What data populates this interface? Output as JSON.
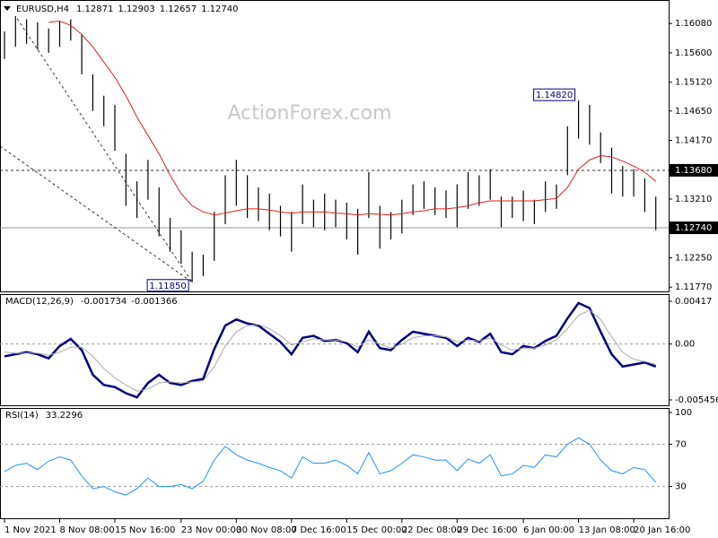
{
  "chart_data": [
    {
      "type": "hilo",
      "title": "EURUSD,H4",
      "readout": [
        "1.12871",
        "1.12903",
        "1.12657",
        "1.12740"
      ],
      "watermark": "ActionForex.com",
      "color": "#000000",
      "high": [
        1.1595,
        1.162,
        1.1615,
        1.161,
        1.16,
        1.1612,
        1.1615,
        1.159,
        1.1525,
        1.149,
        1.1475,
        1.1395,
        1.135,
        1.1385,
        1.134,
        1.129,
        1.127,
        1.1235,
        1.123,
        1.13,
        1.136,
        1.1385,
        1.136,
        1.134,
        1.133,
        1.131,
        1.13,
        1.1345,
        1.132,
        1.133,
        1.132,
        1.1315,
        1.1305,
        1.1365,
        1.131,
        1.13,
        1.132,
        1.1345,
        1.135,
        1.134,
        1.1335,
        1.1345,
        1.1365,
        1.136,
        1.137,
        1.1325,
        1.1325,
        1.1335,
        1.132,
        1.135,
        1.1345,
        1.144,
        1.1482,
        1.1475,
        1.143,
        1.1405,
        1.1375,
        1.137,
        1.1355,
        1.1325
      ],
      "low": [
        1.155,
        1.157,
        1.1575,
        1.1565,
        1.156,
        1.157,
        1.158,
        1.1525,
        1.1465,
        1.144,
        1.14,
        1.131,
        1.129,
        1.132,
        1.126,
        1.1235,
        1.1215,
        1.1185,
        1.1195,
        1.122,
        1.128,
        1.131,
        1.129,
        1.1285,
        1.127,
        1.126,
        1.1235,
        1.128,
        1.1275,
        1.127,
        1.1275,
        1.1255,
        1.123,
        1.129,
        1.124,
        1.1255,
        1.1265,
        1.1295,
        1.1305,
        1.1295,
        1.129,
        1.1275,
        1.1305,
        1.131,
        1.132,
        1.1275,
        1.129,
        1.1285,
        1.128,
        1.13,
        1.1305,
        1.136,
        1.142,
        1.141,
        1.138,
        1.133,
        1.1325,
        1.1325,
        1.13,
        1.127
      ],
      "ma": {
        "color": "#e0201b",
        "values": [
          null,
          null,
          null,
          null,
          1.161,
          1.1612,
          1.1605,
          1.159,
          1.157,
          1.1545,
          1.152,
          1.149,
          1.1455,
          1.1425,
          1.1395,
          1.136,
          1.133,
          1.131,
          1.13,
          1.1295,
          1.1298,
          1.1302,
          1.1305,
          1.1305,
          1.1303,
          1.13,
          1.1298,
          1.13,
          1.13,
          1.13,
          1.1298,
          1.1297,
          1.1295,
          1.1297,
          1.1296,
          1.1295,
          1.1297,
          1.13,
          1.1302,
          1.1305,
          1.1305,
          1.1307,
          1.131,
          1.1315,
          1.1318,
          1.1318,
          1.1318,
          1.1318,
          1.1318,
          1.132,
          1.1322,
          1.134,
          1.137,
          1.1385,
          1.1392,
          1.139,
          1.1383,
          1.1375,
          1.1365,
          1.135
        ]
      },
      "ylim": [
        1.117,
        1.1645
      ],
      "yticks": [
        {
          "value": 1.1608,
          "label": "1.16080"
        },
        {
          "value": 1.156,
          "label": "1.15600"
        },
        {
          "value": 1.1512,
          "label": "1.15120"
        },
        {
          "value": 1.1465,
          "label": "1.14650"
        },
        {
          "value": 1.1417,
          "label": "1.14170"
        },
        {
          "value": 1.1321,
          "label": "1.13210"
        },
        {
          "value": 1.1225,
          "label": "1.12250"
        },
        {
          "value": 1.1177,
          "label": "1.11770"
        }
      ],
      "levels": [
        {
          "value": 1.1368,
          "label": "1.13680",
          "style": "dotted"
        },
        {
          "value": 1.1274,
          "label": "1.12740",
          "style": "solid"
        }
      ],
      "annotations": [
        {
          "value": 1.1482,
          "label": "1.14820"
        },
        {
          "value": 1.1185,
          "label": "1.11850"
        }
      ]
    },
    {
      "type": "macd",
      "title": "MACD(12,26,9)",
      "readout": [
        -0.001734,
        -0.001366
      ],
      "series": [
        {
          "color": "#000080",
          "values": [
            -0.0012,
            -0.001,
            -0.0008,
            -0.001,
            -0.0014,
            -0.0002,
            0.0005,
            -0.0006,
            -0.003,
            -0.004,
            -0.0042,
            -0.0048,
            -0.0052,
            -0.0038,
            -0.003,
            -0.0038,
            -0.004,
            -0.0036,
            -0.0034,
            -0.0005,
            0.0018,
            0.0024,
            0.002,
            0.0018,
            0.001,
            0.0002,
            -0.001,
            0.0006,
            0.0008,
            0.0003,
            0.0004,
            0.0001,
            -0.0008,
            0.0012,
            -0.0004,
            -0.0006,
            0.0004,
            0.0012,
            0.001,
            0.0008,
            0.0006,
            -0.0002,
            0.0006,
            0.0002,
            0.001,
            -0.0008,
            -0.001,
            -0.0002,
            -0.0004,
            0.0003,
            0.0008,
            0.0025,
            0.004,
            0.0035,
            0.0012,
            -0.001,
            -0.0022,
            -0.002,
            -0.0018,
            -0.0022
          ]
        },
        {
          "color": "#a9a9a9",
          "values": [
            -0.0008,
            -0.0009,
            -0.0009,
            -0.0009,
            -0.0011,
            -0.0008,
            -0.0003,
            -0.0003,
            -0.0012,
            -0.0024,
            -0.0033,
            -0.004,
            -0.0046,
            -0.0044,
            -0.0038,
            -0.0037,
            -0.0038,
            -0.0037,
            -0.0036,
            -0.0022,
            -0.0002,
            0.0012,
            0.0018,
            0.0019,
            0.0015,
            0.0008,
            -0.0001,
            0.0002,
            0.0005,
            0.0004,
            0.0004,
            0.0002,
            -0.0003,
            0.0004,
            0.0,
            -0.0004,
            0.0,
            0.0006,
            0.0008,
            0.0008,
            0.0007,
            0.0002,
            0.0004,
            0.0003,
            0.0006,
            -0.0001,
            -0.0006,
            -0.0004,
            -0.0004,
            -0.0001,
            0.0004,
            0.0015,
            0.0028,
            0.0033,
            0.0024,
            0.0007,
            -0.0008,
            -0.0015,
            -0.0017,
            -0.002
          ]
        }
      ],
      "ylim": [
        -0.00598,
        0.00478
      ],
      "yticks": [
        0.00417,
        {
          "value": 0,
          "label": "0.00"
        },
        -0.005456
      ]
    },
    {
      "type": "rsi",
      "title": "RSI(14)",
      "readout": [
        33.2296
      ],
      "color": "#1e90ff",
      "values": [
        44,
        50,
        52,
        46,
        54,
        58,
        55,
        40,
        28,
        30,
        25,
        22,
        28,
        38,
        30,
        30,
        32,
        28,
        35,
        55,
        68,
        60,
        55,
        52,
        48,
        45,
        38,
        58,
        52,
        52,
        55,
        50,
        42,
        62,
        42,
        45,
        52,
        60,
        58,
        55,
        55,
        45,
        56,
        52,
        60,
        40,
        42,
        50,
        48,
        60,
        58,
        70,
        76,
        70,
        55,
        45,
        42,
        48,
        46,
        34
      ],
      "ylim": [
        0,
        100
      ],
      "yticks": [
        100,
        70,
        30
      ],
      "categories": [
        "1 Nov 2021",
        null,
        null,
        null,
        null,
        "8 Nov 08:00",
        null,
        null,
        null,
        null,
        "15 Nov 16:00",
        null,
        null,
        null,
        null,
        null,
        "23 Nov 00:00",
        null,
        null,
        null,
        null,
        "30 Nov 08:00",
        null,
        null,
        null,
        null,
        "7 Dec 16:00",
        null,
        null,
        null,
        null,
        "15 Dec 00:00",
        null,
        null,
        null,
        null,
        "22 Dec 08:00",
        null,
        null,
        null,
        null,
        "29 Dec 16:00",
        null,
        null,
        null,
        null,
        null,
        "6 Jan 00:00",
        null,
        null,
        null,
        null,
        "13 Jan 08:00",
        null,
        null,
        null,
        null,
        "20 Jan 16:00",
        null,
        null
      ]
    }
  ]
}
